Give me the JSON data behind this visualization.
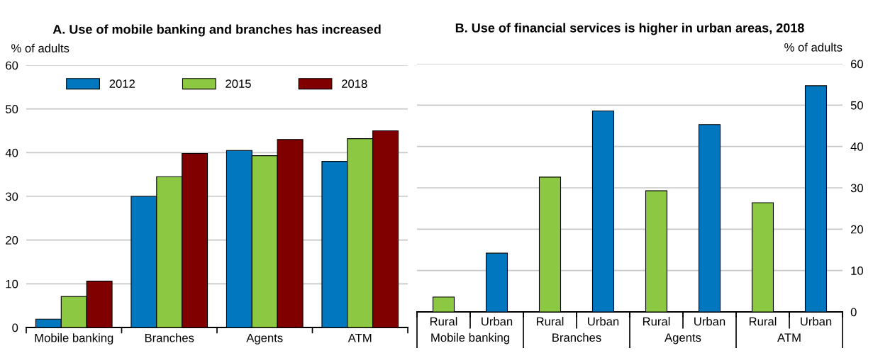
{
  "chart_data": [
    {
      "type": "bar",
      "title": "A. Use of mobile banking and branches has increased",
      "ylabel": "% of adults",
      "categories": [
        "Mobile banking",
        "Branches",
        "Agents",
        "ATM"
      ],
      "series": [
        {
          "name": "2012",
          "color": "#0077bf",
          "values": [
            1.9,
            30,
            40.5,
            38
          ]
        },
        {
          "name": "2015",
          "color": "#8cc841",
          "values": [
            7.1,
            34.5,
            39.3,
            43.2
          ]
        },
        {
          "name": "2018",
          "color": "#800000",
          "values": [
            10.6,
            39.8,
            43,
            45
          ]
        }
      ],
      "ylim": [
        0,
        60
      ],
      "yticks": [
        0,
        10,
        20,
        30,
        40,
        50,
        60
      ],
      "grid": "y",
      "legend": "top"
    },
    {
      "type": "bar",
      "title": "B. Use of financial services is higher in urban areas, 2018",
      "y2label": "% of adults",
      "categories": [
        "Rural",
        "Urban",
        "Rural",
        "Urban",
        "Rural",
        "Urban",
        "Rural",
        "Urban"
      ],
      "series": [
        {
          "axis": "y2",
          "values": [
            3.6,
            14.2,
            32.6,
            48.6,
            29.3,
            45.3,
            26.4,
            54.7
          ],
          "colors": [
            "#8cc841",
            "#0077bf",
            "#8cc841",
            "#0077bf",
            "#8cc841",
            "#0077bf",
            "#8cc841",
            "#0077bf"
          ]
        }
      ],
      "y2lim": [
        0,
        60
      ],
      "y2ticks": [
        0,
        10,
        20,
        30,
        40,
        50,
        60
      ],
      "grid": "y",
      "annotations": [
        "Mobile banking",
        "Branches",
        "Agents",
        "ATM"
      ]
    }
  ]
}
